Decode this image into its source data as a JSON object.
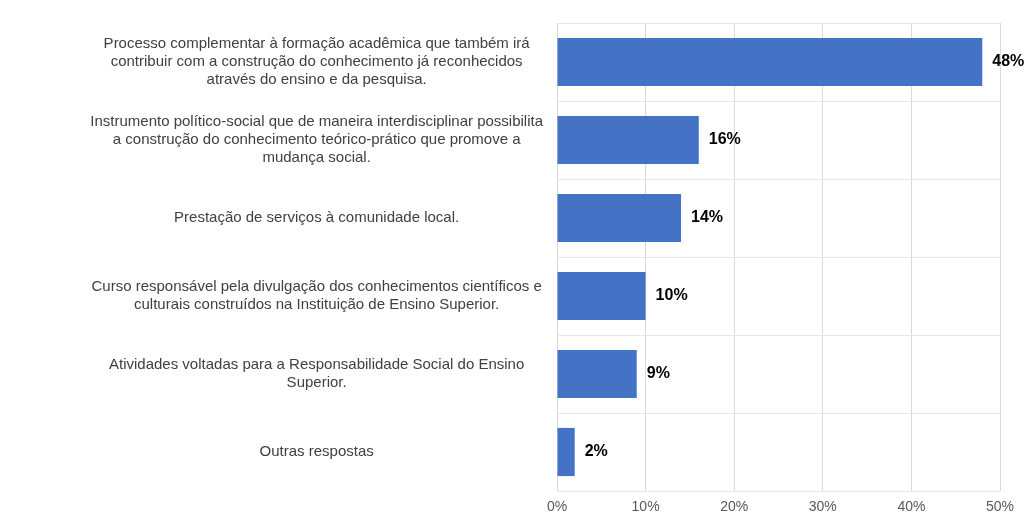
{
  "chart_data": {
    "type": "bar",
    "orientation": "horizontal",
    "categories": [
      "Processo complementar à formação acadêmica que também irá contribuir com a construção do conhecimento já reconhecidos através do ensino e da pesquisa.",
      "Instrumento político-social que de maneira interdisciplinar possibilita a construção do conhecimento teórico-prático que promove a mudança social.",
      "Prestação de serviços à comunidade local.",
      "Curso responsável pela divulgação dos conhecimentos científicos e culturais construídos na Instituição de Ensino Superior.",
      "Atividades voltadas para a Responsabilidade Social do Ensino Superior.",
      "Outras respostas"
    ],
    "values": [
      48,
      16,
      14,
      10,
      9,
      2
    ],
    "value_labels": [
      "48%",
      "16%",
      "14%",
      "10%",
      "9%",
      "2%"
    ],
    "color": "#4472c4",
    "xlim": [
      0,
      50
    ],
    "xticks": [
      {
        "value": 0,
        "label": "0%"
      },
      {
        "value": 10,
        "label": "10%"
      },
      {
        "value": 20,
        "label": "20%"
      },
      {
        "value": 30,
        "label": "30%"
      },
      {
        "value": 40,
        "label": "40%"
      },
      {
        "value": 50,
        "label": "50%"
      }
    ],
    "grid": true,
    "legend": false
  }
}
